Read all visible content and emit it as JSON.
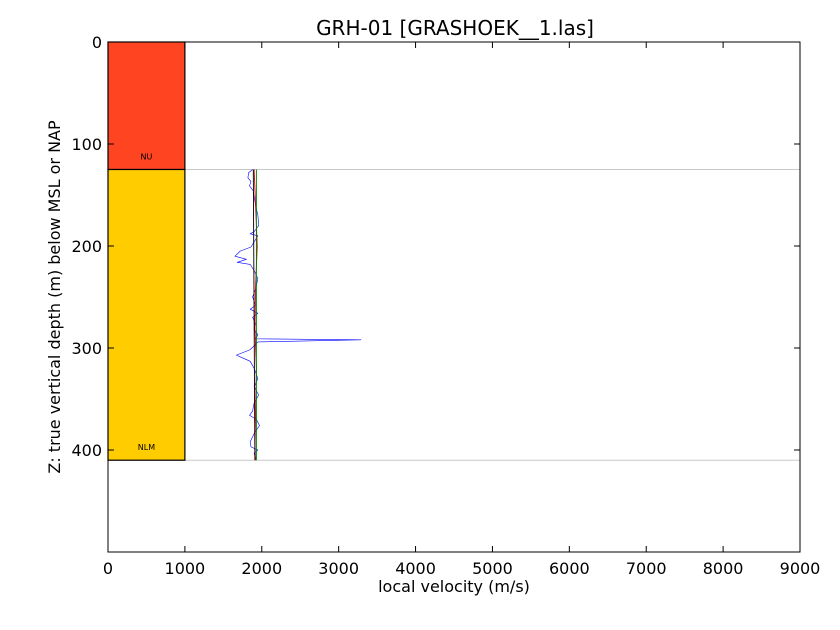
{
  "chart_data": {
    "type": "line",
    "title": "GRH-01 [GRASHOEK__1.las]",
    "xlabel": "local velocity (m/s)",
    "ylabel": "Z: true vertical depth (m) below MSL or NAP",
    "xlim": [
      0,
      9000
    ],
    "ylim": [
      500,
      0
    ],
    "x_ticks": [
      "0",
      "1000",
      "2000",
      "3000",
      "4000",
      "5000",
      "6000",
      "7000",
      "8000",
      "9000"
    ],
    "y_ticks": [
      "0",
      "100",
      "200",
      "300",
      "400"
    ],
    "grid": false,
    "legend": "none",
    "units": [
      {
        "name": "NU",
        "top": 0,
        "base": 125,
        "x_range": [
          0,
          1000
        ],
        "color": "#ff4422"
      },
      {
        "name": "NLM",
        "top": 125,
        "base": 410,
        "x_range": [
          0,
          1000
        ],
        "color": "#ffcc00"
      }
    ],
    "horizons": [
      125,
      410
    ],
    "series": [
      {
        "color": "#0000ff",
        "style": "thin",
        "points": [
          [
            1880,
            125
          ],
          [
            1830,
            128
          ],
          [
            1820,
            133
          ],
          [
            1860,
            137
          ],
          [
            1840,
            141
          ],
          [
            1890,
            146
          ],
          [
            1900,
            152
          ],
          [
            1920,
            160
          ],
          [
            1950,
            170
          ],
          [
            1960,
            180
          ],
          [
            1900,
            186
          ],
          [
            1850,
            188
          ],
          [
            1950,
            190
          ],
          [
            1900,
            196
          ],
          [
            1860,
            201
          ],
          [
            1720,
            205
          ],
          [
            1650,
            210
          ],
          [
            1800,
            213
          ],
          [
            1680,
            216
          ],
          [
            1850,
            218
          ],
          [
            1900,
            224
          ],
          [
            1950,
            232
          ],
          [
            1920,
            242
          ],
          [
            1880,
            250
          ],
          [
            1920,
            258
          ],
          [
            1850,
            262
          ],
          [
            1950,
            266
          ],
          [
            1880,
            270
          ],
          [
            1920,
            276
          ],
          [
            1900,
            282
          ],
          [
            1950,
            287
          ],
          [
            1920,
            291
          ],
          [
            3290,
            292
          ],
          [
            1950,
            294
          ],
          [
            1900,
            298
          ],
          [
            1840,
            302
          ],
          [
            1670,
            307
          ],
          [
            1760,
            310
          ],
          [
            1850,
            313
          ],
          [
            1900,
            320
          ],
          [
            1950,
            330
          ],
          [
            1900,
            338
          ],
          [
            1960,
            346
          ],
          [
            1900,
            354
          ],
          [
            1880,
            362
          ],
          [
            1840,
            366
          ],
          [
            1930,
            370
          ],
          [
            1970,
            376
          ],
          [
            1900,
            384
          ],
          [
            1850,
            392
          ],
          [
            1860,
            397
          ],
          [
            1950,
            400
          ],
          [
            1900,
            403
          ],
          [
            1920,
            408
          ]
        ]
      },
      {
        "color": "#cc0000",
        "style": "thin",
        "points": [
          [
            1900,
            125
          ],
          [
            1920,
            160
          ],
          [
            1940,
            200
          ],
          [
            1920,
            240
          ],
          [
            1910,
            280
          ],
          [
            1930,
            320
          ],
          [
            1920,
            360
          ],
          [
            1910,
            400
          ],
          [
            1920,
            410
          ]
        ]
      },
      {
        "color": "#008000",
        "style": "thin",
        "points": [
          [
            1930,
            125
          ],
          [
            1930,
            410
          ]
        ]
      },
      {
        "color": "#000000",
        "style": "thin",
        "points": [
          [
            1890,
            125
          ],
          [
            1910,
            410
          ]
        ]
      }
    ]
  }
}
